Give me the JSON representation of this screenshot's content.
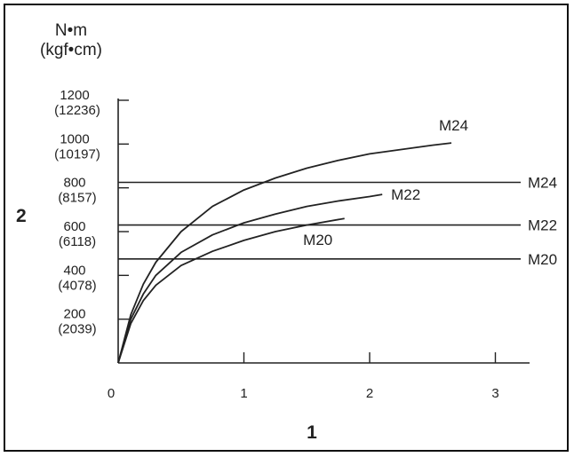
{
  "chart_data": {
    "type": "line",
    "unit_line1": "N•m",
    "unit_line2": "(kgf•cm)",
    "y_axis_label": "2",
    "x_axis_label": "1",
    "ylim": [
      0,
      1200
    ],
    "xlim": [
      0,
      3.25
    ],
    "y_ticks": [
      {
        "value": 200,
        "label": "200",
        "label2": "(2039)"
      },
      {
        "value": 400,
        "label": "400",
        "label2": "(4078)"
      },
      {
        "value": 600,
        "label": "600",
        "label2": "(6118)"
      },
      {
        "value": 800,
        "label": "800",
        "label2": "(8157)"
      },
      {
        "value": 1000,
        "label": "1000",
        "label2": "(10197)"
      },
      {
        "value": 1200,
        "label": "1200",
        "label2": "(12236)"
      }
    ],
    "x_ticks": [
      {
        "value": 0,
        "label": "0"
      },
      {
        "value": 1,
        "label": "1"
      },
      {
        "value": 2,
        "label": "2"
      },
      {
        "value": 3,
        "label": "3"
      }
    ],
    "series": [
      {
        "name": "M24",
        "x": [
          0,
          0.1,
          0.2,
          0.3,
          0.5,
          0.75,
          1.0,
          1.25,
          1.5,
          1.75,
          2.0,
          2.25,
          2.5,
          2.65
        ],
        "y": [
          0,
          220,
          360,
          460,
          600,
          715,
          790,
          845,
          890,
          925,
          955,
          975,
          995,
          1005
        ]
      },
      {
        "name": "M22",
        "x": [
          0,
          0.1,
          0.2,
          0.3,
          0.5,
          0.75,
          1.0,
          1.25,
          1.5,
          1.75,
          2.0,
          2.1
        ],
        "y": [
          0,
          200,
          315,
          400,
          505,
          585,
          640,
          680,
          715,
          740,
          760,
          770
        ]
      },
      {
        "name": "M20",
        "x": [
          0,
          0.1,
          0.2,
          0.3,
          0.5,
          0.75,
          1.0,
          1.25,
          1.5,
          1.8
        ],
        "y": [
          0,
          180,
          285,
          355,
          445,
          510,
          560,
          600,
          630,
          660
        ]
      }
    ],
    "reference_lines": [
      {
        "name": "M24",
        "y": 825
      },
      {
        "name": "M22",
        "y": 630
      },
      {
        "name": "M20",
        "y": 475
      }
    ],
    "grid": false
  }
}
